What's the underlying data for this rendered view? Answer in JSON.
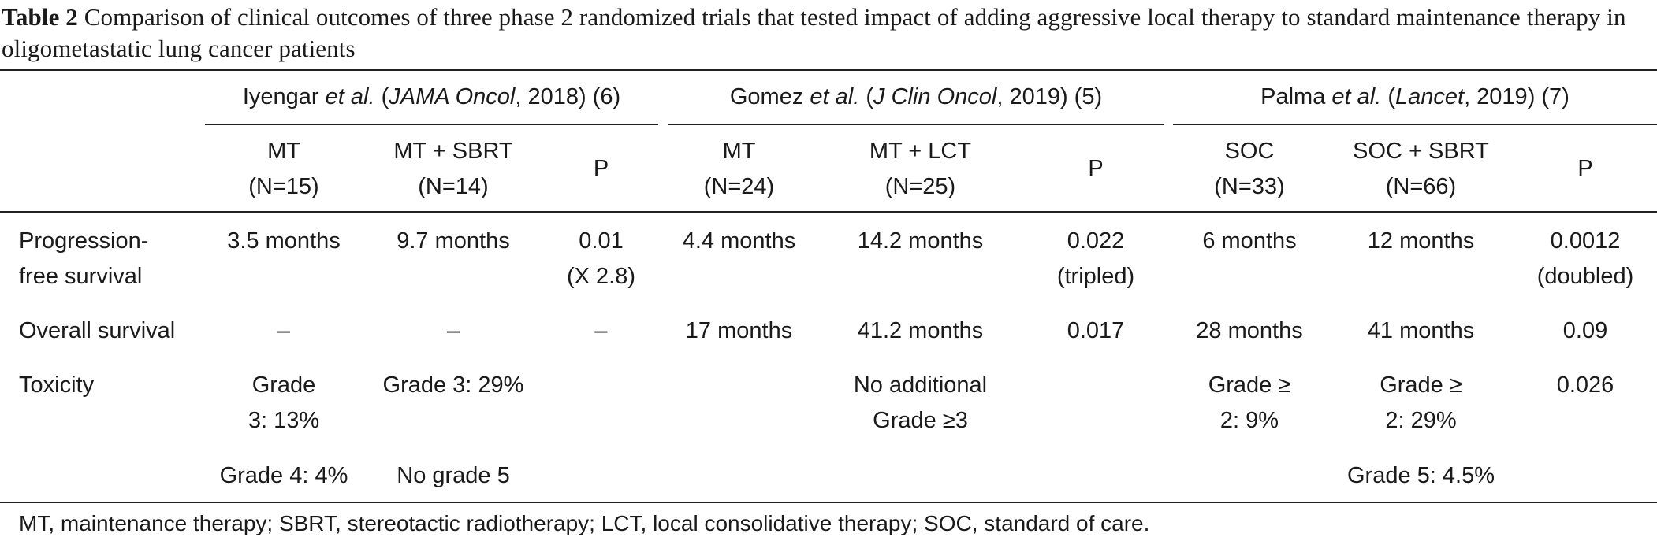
{
  "caption": {
    "label": "Table 2",
    "text": " Comparison of clinical outcomes of three phase 2 randomized trials that tested impact of adding aggressive local therapy to standard maintenance therapy in oligometastatic lung cancer patients"
  },
  "studies": [
    {
      "author": "Iyengar",
      "etal": "et al.",
      "journal": "JAMA Oncol",
      "rest": ", 2018) (6)"
    },
    {
      "author": "Gomez",
      "etal": "et al.",
      "journal": "J Clin Oncol",
      "rest": ", 2019) (5)"
    },
    {
      "author": "Palma",
      "etal": "et al.",
      "journal": "Lancet",
      "rest": ", 2019) (7)"
    }
  ],
  "arms": [
    {
      "name": "MT",
      "n": "(N=15)"
    },
    {
      "name": "MT + SBRT",
      "n": "(N=14)"
    },
    {
      "name": "P",
      "n": ""
    },
    {
      "name": "MT",
      "n": "(N=24)"
    },
    {
      "name": "MT + LCT",
      "n": "(N=25)"
    },
    {
      "name": "P",
      "n": ""
    },
    {
      "name": "SOC",
      "n": "(N=33)"
    },
    {
      "name": "SOC + SBRT",
      "n": "(N=66)"
    },
    {
      "name": "P",
      "n": ""
    }
  ],
  "rows": [
    {
      "label": [
        "Progression-",
        "free survival"
      ],
      "cells": [
        [
          "3.5 months"
        ],
        [
          "9.7 months"
        ],
        [
          "0.01",
          "(X 2.8)"
        ],
        [
          "4.4 months"
        ],
        [
          "14.2 months"
        ],
        [
          "0.022",
          "(tripled)"
        ],
        [
          "6 months"
        ],
        [
          "12 months"
        ],
        [
          "0.0012",
          "(doubled)"
        ]
      ]
    },
    {
      "label": [
        "Overall survival"
      ],
      "cells": [
        [
          "–"
        ],
        [
          "–"
        ],
        [
          "–"
        ],
        [
          "17 months"
        ],
        [
          "41.2 months"
        ],
        [
          "0.017"
        ],
        [
          "28 months"
        ],
        [
          "41 months"
        ],
        [
          "0.09"
        ]
      ]
    },
    {
      "label": [
        "Toxicity"
      ],
      "cells": [
        [
          "Grade",
          "3: 13%"
        ],
        [
          "Grade 3: 29%"
        ],
        [],
        [],
        [
          "No additional",
          "Grade ≥3"
        ],
        [],
        [
          "Grade ≥",
          "2: 9%"
        ],
        [
          "Grade ≥",
          "2: 29%"
        ],
        [
          "0.026"
        ]
      ]
    },
    {
      "label": [],
      "cells": [
        [
          "Grade 4: 4%"
        ],
        [
          "No grade 5"
        ],
        [],
        [],
        [],
        [],
        [],
        [
          "Grade 5: 4.5%"
        ],
        []
      ]
    }
  ],
  "footnote": "MT, maintenance therapy; SBRT, stereotactic radiotherapy; LCT, local consolidative therapy; SOC, standard of care."
}
